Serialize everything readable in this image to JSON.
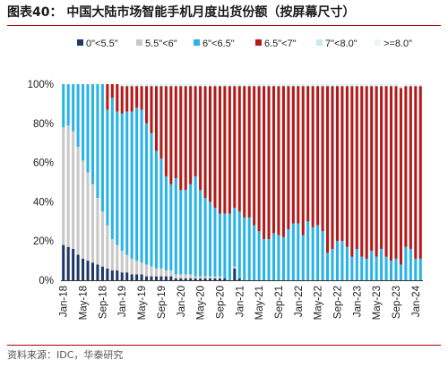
{
  "header": {
    "title": "图表40：  中国大陆市场智能手机月度出货份额（按屏幕尺寸）"
  },
  "footer": {
    "source": "资料来源：IDC，华泰研究"
  },
  "chart_data": {
    "type": "bar",
    "stacked": true,
    "title": "",
    "xlabel": "",
    "ylabel": "",
    "ylim": [
      0,
      100
    ],
    "y_ticks": [
      "0%",
      "20%",
      "40%",
      "60%",
      "80%",
      "100%"
    ],
    "x_tick_labels": [
      "Jan-18",
      "May-18",
      "Sep-18",
      "Jan-19",
      "May-19",
      "Sep-19",
      "Jan-20",
      "May-20",
      "Sep-20",
      "Jan-21",
      "May-21",
      "Sep-21",
      "Jan-22",
      "May-22",
      "Sep-22",
      "Jan-23",
      "May-23",
      "Sep-23",
      "Jan-24"
    ],
    "grid": false,
    "legend_position": "top",
    "categories": [
      "Jan-18",
      "Feb-18",
      "Mar-18",
      "Apr-18",
      "May-18",
      "Jun-18",
      "Jul-18",
      "Aug-18",
      "Sep-18",
      "Oct-18",
      "Nov-18",
      "Dec-18",
      "Jan-19",
      "Feb-19",
      "Mar-19",
      "Apr-19",
      "May-19",
      "Jun-19",
      "Jul-19",
      "Aug-19",
      "Sep-19",
      "Oct-19",
      "Nov-19",
      "Dec-19",
      "Jan-20",
      "Feb-20",
      "Mar-20",
      "Apr-20",
      "May-20",
      "Jun-20",
      "Jul-20",
      "Aug-20",
      "Sep-20",
      "Oct-20",
      "Nov-20",
      "Dec-20",
      "Jan-21",
      "Feb-21",
      "Mar-21",
      "Apr-21",
      "May-21",
      "Jun-21",
      "Jul-21",
      "Aug-21",
      "Sep-21",
      "Oct-21",
      "Nov-21",
      "Dec-21",
      "Jan-22",
      "Feb-22",
      "Mar-22",
      "Apr-22",
      "May-22",
      "Jun-22",
      "Jul-22",
      "Aug-22",
      "Sep-22",
      "Oct-22",
      "Nov-22",
      "Dec-22",
      "Jan-23",
      "Feb-23",
      "Mar-23",
      "Apr-23",
      "May-23",
      "Jun-23",
      "Jul-23",
      "Aug-23",
      "Sep-23",
      "Oct-23",
      "Nov-23",
      "Dec-23",
      "Jan-24",
      "Feb-24"
    ],
    "series": [
      {
        "name": "0\"<5.5\"",
        "color": "#1f3864",
        "values": [
          18,
          17,
          16,
          13,
          11,
          10,
          9,
          8,
          7,
          6,
          5,
          5,
          4,
          4,
          3,
          3,
          3,
          2,
          2,
          2,
          2,
          2,
          2,
          1,
          1,
          1,
          1,
          1,
          1,
          1,
          1,
          1,
          1,
          1,
          0,
          6,
          1,
          0,
          0,
          0,
          0,
          0,
          0,
          0,
          0,
          0,
          0,
          0,
          0,
          0,
          0,
          0,
          0,
          0,
          0,
          0,
          0,
          0,
          0,
          0,
          0,
          0,
          0,
          0,
          0,
          0,
          0,
          0,
          0,
          0,
          0,
          0,
          0,
          0
        ]
      },
      {
        "name": "5.5\"<6\"",
        "color": "#c8c8c8",
        "values": [
          60,
          62,
          60,
          55,
          50,
          45,
          40,
          34,
          28,
          22,
          16,
          13,
          11,
          9,
          8,
          7,
          6,
          6,
          5,
          4,
          4,
          3,
          3,
          2,
          2,
          2,
          2,
          1,
          1,
          1,
          1,
          1,
          1,
          0,
          0,
          1,
          0,
          0,
          0,
          0,
          0,
          0,
          0,
          0,
          0,
          0,
          0,
          0,
          0,
          0,
          0,
          0,
          0,
          0,
          0,
          0,
          0,
          0,
          0,
          0,
          0,
          0,
          0,
          0,
          0,
          0,
          0,
          0,
          0,
          0,
          0,
          0,
          0,
          0
        ]
      },
      {
        "name": "6\"<6.5\"",
        "color": "#2ab3e6",
        "values": [
          22,
          21,
          24,
          32,
          39,
          45,
          51,
          58,
          65,
          59,
          72,
          68,
          70,
          73,
          75,
          78,
          78,
          72,
          68,
          60,
          56,
          48,
          44,
          49,
          43,
          43,
          46,
          51,
          44,
          40,
          38,
          35,
          32,
          33,
          34,
          30,
          34,
          32,
          32,
          28,
          25,
          21,
          21,
          24,
          23,
          22,
          26,
          29,
          29,
          23,
          30,
          27,
          28,
          25,
          14,
          16,
          20,
          20,
          17,
          12,
          16,
          12,
          11,
          15,
          12,
          16,
          12,
          10,
          11,
          8,
          17,
          16,
          11,
          11
        ]
      },
      {
        "name": "6.5\"<7\"",
        "color": "#b31b1b",
        "values": [
          0,
          0,
          0,
          0,
          0,
          0,
          0,
          0,
          0,
          13,
          7,
          14,
          14,
          13,
          13,
          11,
          12,
          19,
          24,
          33,
          37,
          46,
          50,
          47,
          53,
          53,
          50,
          46,
          53,
          57,
          59,
          62,
          65,
          65,
          65,
          62,
          64,
          67,
          67,
          71,
          74,
          78,
          78,
          75,
          76,
          77,
          73,
          70,
          70,
          76,
          69,
          72,
          71,
          74,
          85,
          83,
          79,
          79,
          82,
          87,
          83,
          87,
          88,
          84,
          87,
          83,
          87,
          89,
          88,
          90,
          82,
          83,
          88,
          88
        ]
      },
      {
        "name": "7\"<8.0\"",
        "color": "#cbe8f5",
        "values": [
          0,
          0,
          0,
          0,
          0,
          0,
          0,
          0,
          0,
          0,
          0,
          0,
          1,
          1,
          1,
          1,
          1,
          1,
          1,
          1,
          1,
          1,
          1,
          1,
          1,
          1,
          1,
          1,
          1,
          1,
          1,
          1,
          1,
          1,
          1,
          1,
          1,
          1,
          1,
          1,
          1,
          1,
          1,
          1,
          1,
          1,
          1,
          1,
          1,
          1,
          1,
          1,
          1,
          1,
          1,
          1,
          1,
          1,
          1,
          1,
          1,
          1,
          1,
          1,
          1,
          1,
          1,
          1,
          1,
          1,
          1,
          1,
          1,
          1
        ]
      },
      {
        "name": ">=8.0\"",
        "color": "#eaf4f8",
        "values": [
          0,
          0,
          0,
          0,
          0,
          0,
          0,
          0,
          0,
          0,
          0,
          0,
          0,
          0,
          0,
          0,
          0,
          0,
          0,
          0,
          0,
          0,
          0,
          0,
          0,
          0,
          0,
          0,
          0,
          0,
          0,
          0,
          0,
          0,
          0,
          0,
          0,
          0,
          0,
          0,
          0,
          0,
          0,
          0,
          0,
          0,
          0,
          0,
          0,
          0,
          0,
          0,
          0,
          0,
          0,
          0,
          0,
          0,
          0,
          0,
          0,
          0,
          0,
          0,
          0,
          0,
          0,
          0,
          0,
          0,
          0,
          0,
          0,
          0
        ]
      }
    ]
  }
}
